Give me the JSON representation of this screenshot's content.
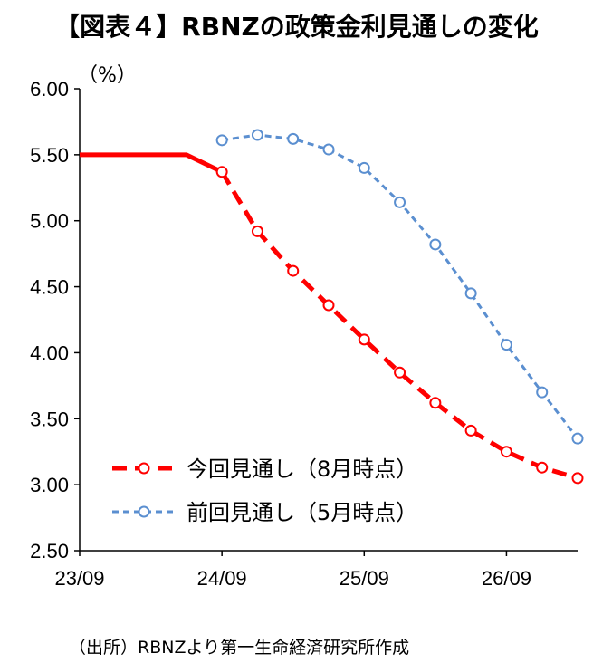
{
  "chart_data": {
    "type": "line",
    "title": "【図表４】RBNZの政策金利見通しの変化",
    "ylabel": "（%）",
    "ylim": [
      2.5,
      6.0
    ],
    "yticks": [
      "6.00",
      "5.50",
      "5.00",
      "4.50",
      "4.00",
      "3.50",
      "3.00",
      "2.50"
    ],
    "xlim": [
      "2023-09",
      "2027-03"
    ],
    "xticks": [
      "23/09",
      "24/09",
      "25/09",
      "26/09"
    ],
    "grid": false,
    "legend_position": "lower-left",
    "series": [
      {
        "name": "今回見通し（8月時点）",
        "color": "#ff0000",
        "line_style": "dashed",
        "marker": "open-circle",
        "step_before": [
          [
            "2023-09",
            5.5
          ],
          [
            "2024-06",
            5.5
          ]
        ],
        "x": [
          "2024-09",
          "2024-12",
          "2025-03",
          "2025-06",
          "2025-09",
          "2025-12",
          "2026-03",
          "2026-06",
          "2026-09",
          "2026-12",
          "2027-03"
        ],
        "values": [
          5.37,
          4.92,
          4.62,
          4.36,
          4.1,
          3.85,
          3.62,
          3.41,
          3.25,
          3.13,
          3.05
        ]
      },
      {
        "name": "前回見通し（5月時点）",
        "color": "#5b8fd0",
        "line_style": "dashed",
        "marker": "open-circle",
        "x": [
          "2024-09",
          "2024-12",
          "2025-03",
          "2025-06",
          "2025-09",
          "2025-12",
          "2026-03",
          "2026-06",
          "2026-09",
          "2026-12",
          "2027-03"
        ],
        "values": [
          5.61,
          5.65,
          5.62,
          5.54,
          5.4,
          5.14,
          4.82,
          4.45,
          4.06,
          3.7,
          3.35
        ]
      }
    ]
  },
  "source": "（出所）RBNZより第一生命経済研究所作成"
}
